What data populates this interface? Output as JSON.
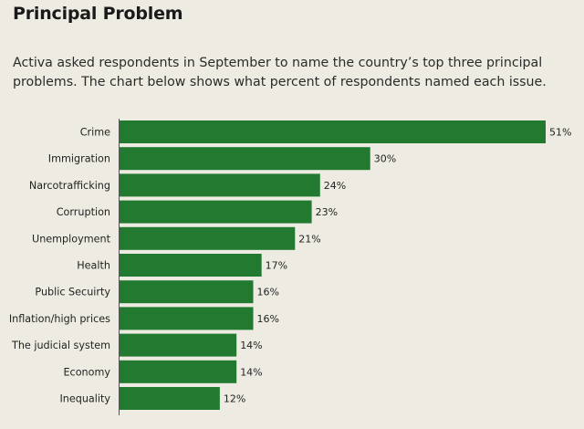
{
  "header": {
    "title": "Principal Problem",
    "subtitle": "Activa asked respondents in September to name the country’s top three principal problems. The chart below shows what percent of respondents named each issue."
  },
  "colors": {
    "bar": "#227930",
    "background": "#eeece2"
  },
  "chart_data": {
    "type": "bar",
    "orientation": "horizontal",
    "title": "Principal Problem",
    "xlabel": "",
    "ylabel": "",
    "xlim": [
      0,
      51
    ],
    "value_suffix": "%",
    "grid": false,
    "categories": [
      "Crime",
      "Immigration",
      "Narcotrafficking",
      "Corruption",
      "Unemployment",
      "Health",
      "Public Secuirty",
      "Inflation/high prices",
      "The judicial system",
      "Economy",
      "Inequality"
    ],
    "values": [
      51,
      30,
      24,
      23,
      21,
      17,
      16,
      16,
      14,
      14,
      12
    ],
    "value_labels": [
      "51%",
      "30%",
      "24%",
      "23%",
      "21%",
      "17%",
      "16%",
      "16%",
      "14%",
      "14%",
      "12%"
    ]
  }
}
